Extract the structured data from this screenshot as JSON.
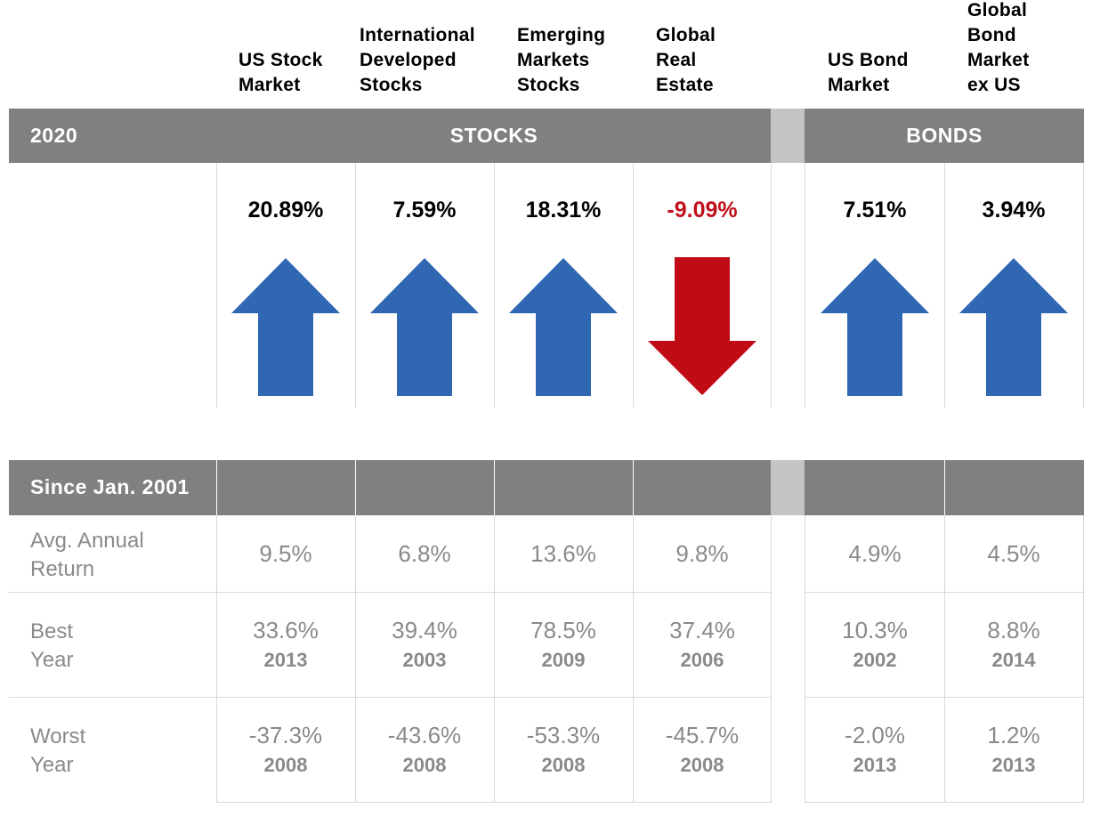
{
  "columns": [
    {
      "label_lines": [
        "US Stock",
        "Market"
      ],
      "return": "20.89%",
      "direction": "up",
      "avg": "9.5%",
      "best": "33.6%",
      "best_year": "2013",
      "worst": "-37.3%",
      "worst_year": "2008"
    },
    {
      "label_lines": [
        "International",
        "Developed",
        "Stocks"
      ],
      "return": "7.59%",
      "direction": "up",
      "avg": "6.8%",
      "best": "39.4%",
      "best_year": "2003",
      "worst": "-43.6%",
      "worst_year": "2008"
    },
    {
      "label_lines": [
        "Emerging",
        "Markets",
        "Stocks"
      ],
      "return": "18.31%",
      "direction": "up",
      "avg": "13.6%",
      "best": "78.5%",
      "best_year": "2009",
      "worst": "-53.3%",
      "worst_year": "2008"
    },
    {
      "label_lines": [
        "Global",
        "Real",
        "Estate"
      ],
      "return": "-9.09%",
      "direction": "down",
      "avg": "9.8%",
      "best": "37.4%",
      "best_year": "2006",
      "worst": "-45.7%",
      "worst_year": "2008"
    },
    {
      "label_lines": [
        "US Bond",
        "Market"
      ],
      "return": "7.51%",
      "direction": "up",
      "avg": "4.9%",
      "best": "10.3%",
      "best_year": "2002",
      "worst": "-2.0%",
      "worst_year": "2013"
    },
    {
      "label_lines": [
        "Global",
        "Bond",
        "Market",
        "ex US"
      ],
      "return": "3.94%",
      "direction": "up",
      "avg": "4.5%",
      "best": "8.8%",
      "best_year": "2014",
      "worst": "1.2%",
      "worst_year": "2013"
    }
  ],
  "header_bar": {
    "year": "2020",
    "stocks": "STOCKS",
    "bonds": "BONDS"
  },
  "since_bar": {
    "label": "Since Jan. 2001"
  },
  "row_labels": {
    "avg": [
      "Avg. Annual",
      "Return"
    ],
    "best": [
      "Best",
      "Year"
    ],
    "worst": [
      "Worst",
      "Year"
    ]
  },
  "colors": {
    "up": "#2f67b2",
    "down": "#c00a14",
    "bar": "#808080",
    "gap": "#c4c4c4",
    "negative_text": "#c0101c"
  },
  "chart_data": {
    "type": "table",
    "title": "",
    "categories": [
      "US Stock Market",
      "International Developed Stocks",
      "Emerging Markets Stocks",
      "Global Real Estate",
      "US Bond Market",
      "Global Bond Market ex US"
    ],
    "series": [
      {
        "name": "2020",
        "values": [
          20.89,
          7.59,
          18.31,
          -9.09,
          7.51,
          3.94
        ]
      },
      {
        "name": "Avg. Annual Return",
        "values": [
          9.5,
          6.8,
          13.6,
          9.8,
          4.9,
          4.5
        ]
      },
      {
        "name": "Best Year",
        "values": [
          33.6,
          39.4,
          78.5,
          37.4,
          10.3,
          8.8
        ],
        "years": [
          2013,
          2003,
          2009,
          2006,
          2002,
          2014
        ]
      },
      {
        "name": "Worst Year",
        "values": [
          -37.3,
          -43.6,
          -53.3,
          -45.7,
          -2.0,
          1.2
        ],
        "years": [
          2008,
          2008,
          2008,
          2008,
          2013,
          2013
        ]
      }
    ]
  }
}
